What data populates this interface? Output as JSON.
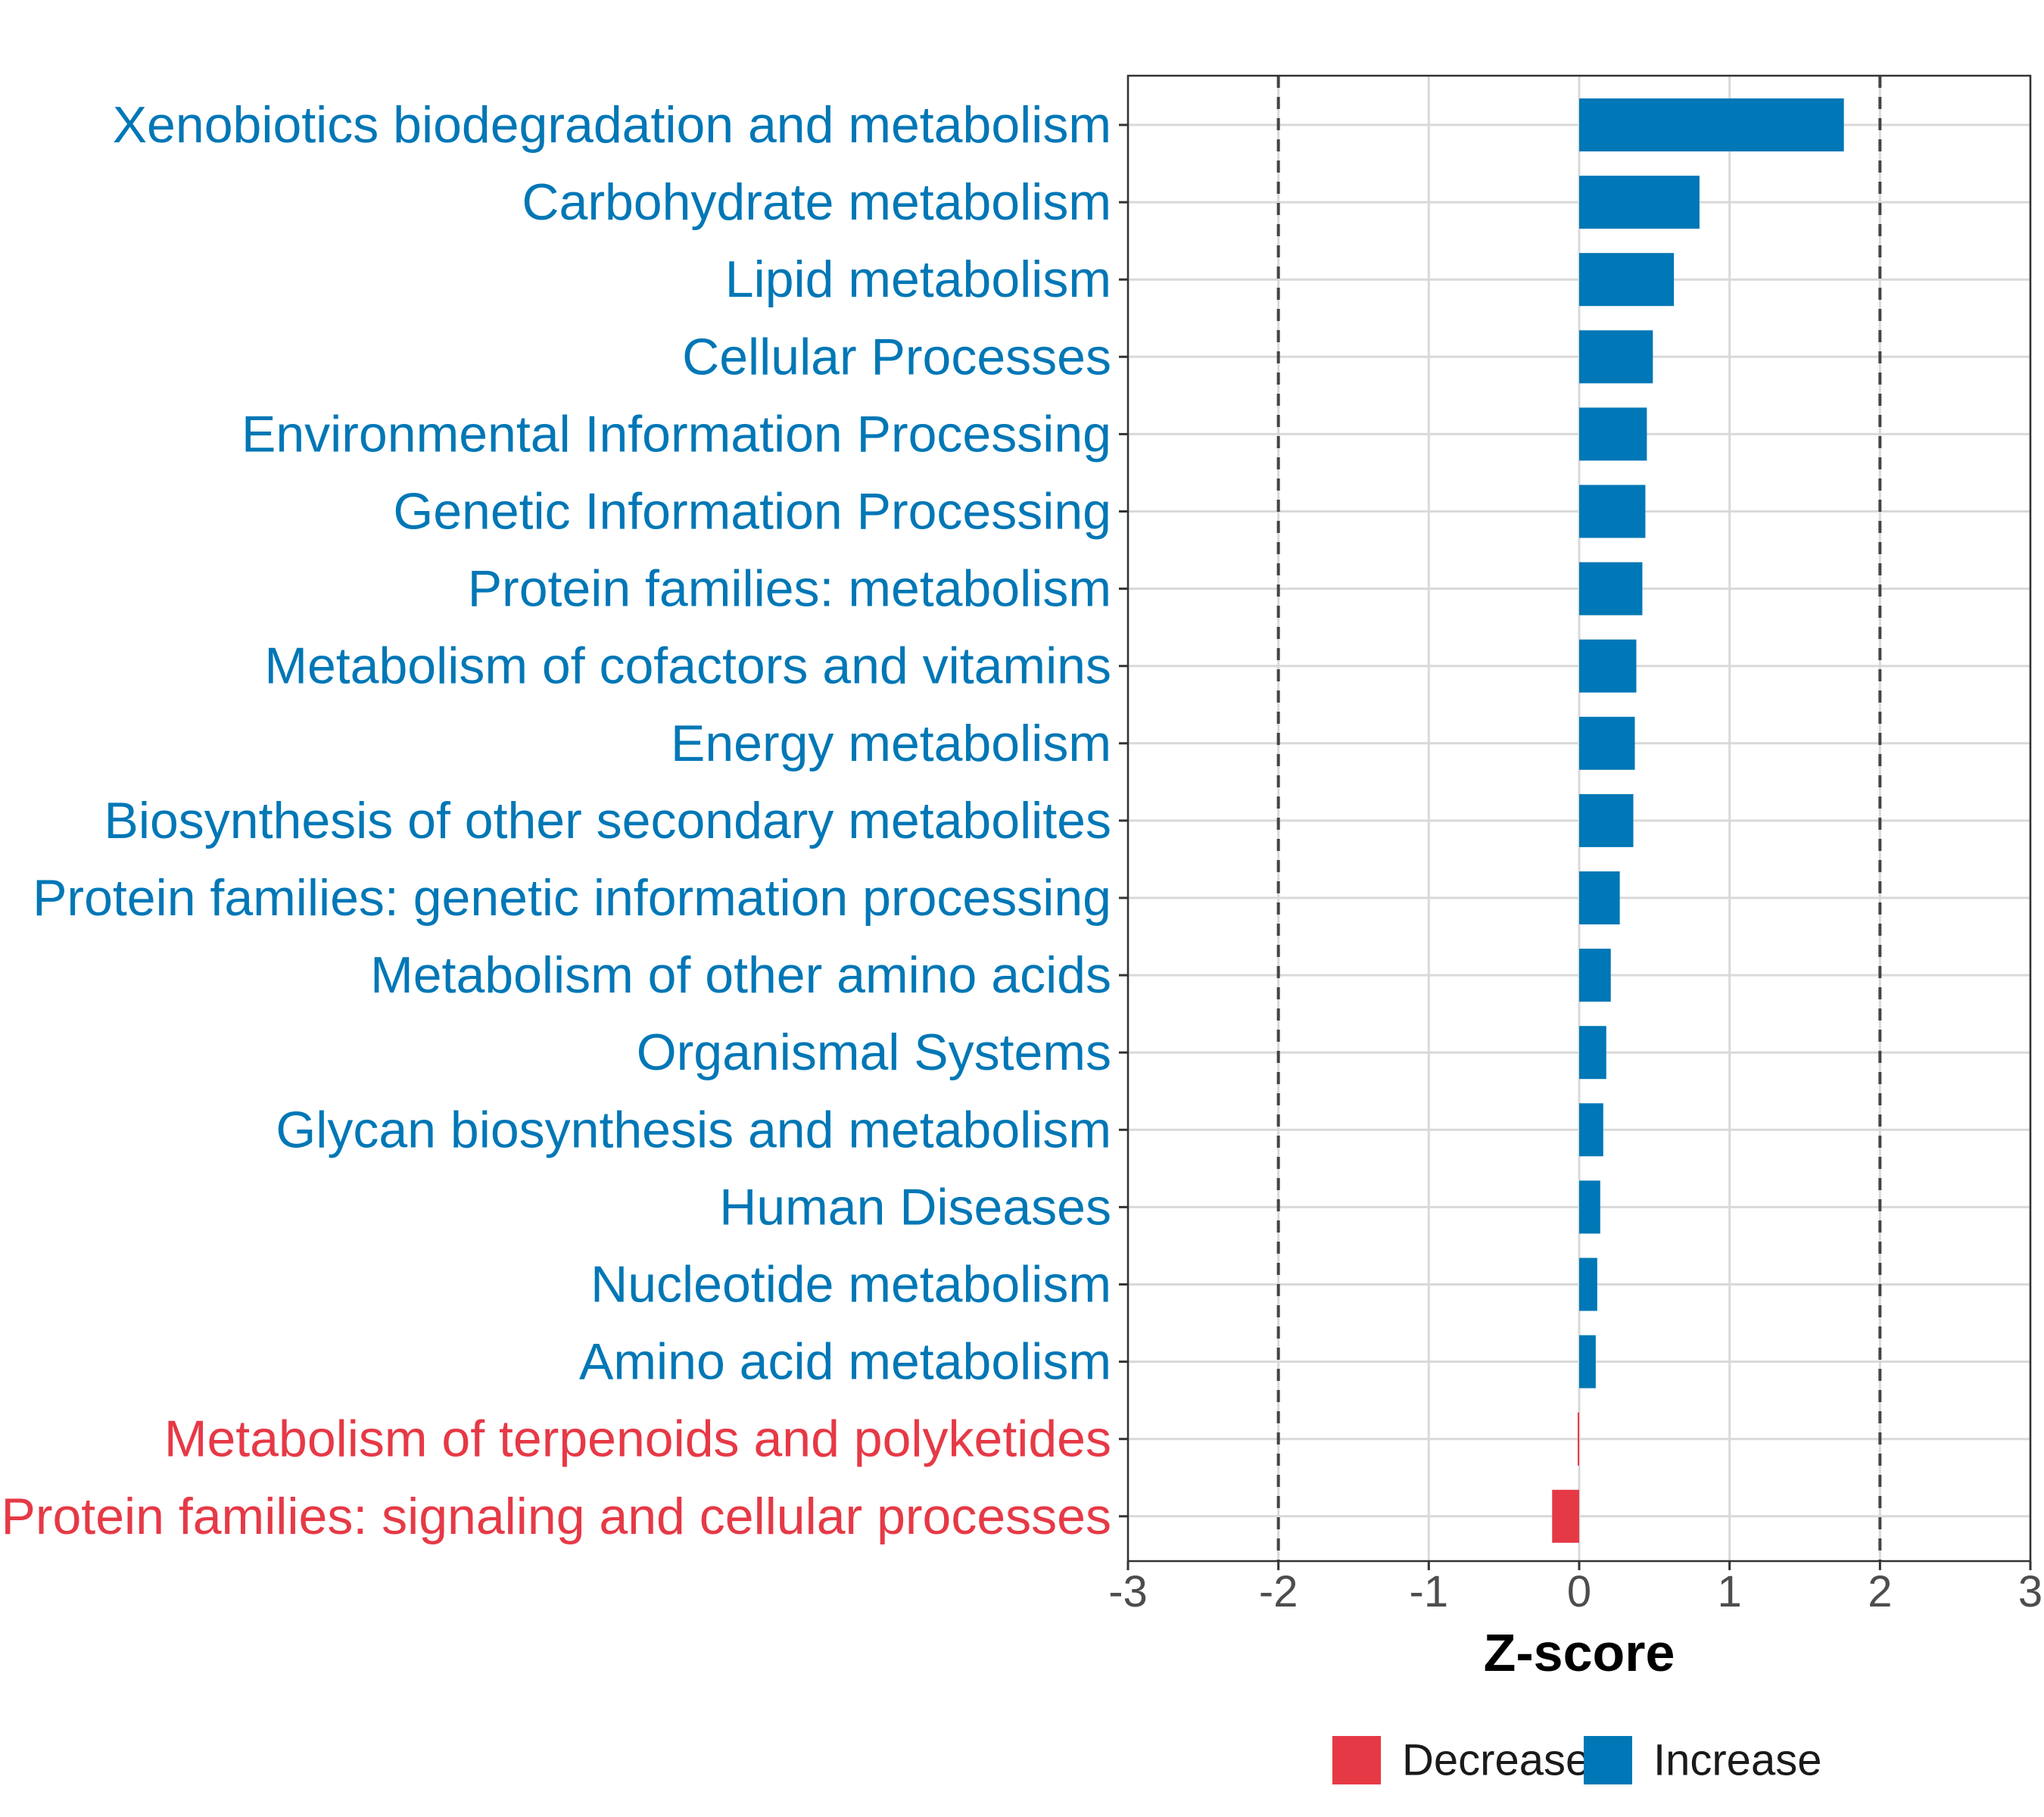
{
  "chart_data": {
    "type": "bar",
    "orientation": "horizontal",
    "title": "",
    "xlabel": "Z-score",
    "ylabel": "",
    "xlim": [
      -3,
      3
    ],
    "xticks": [
      "-3",
      "-2",
      "-1",
      "0",
      "1",
      "2",
      "3"
    ],
    "reference_lines": [
      -2,
      2
    ],
    "grid": true,
    "categories": [
      "Xenobiotics biodegradation and metabolism",
      "Carbohydrate metabolism",
      "Lipid metabolism",
      "Cellular Processes",
      "Environmental Information Processing",
      "Genetic Information Processing",
      "Protein families: metabolism",
      "Metabolism of cofactors and vitamins",
      "Energy metabolism",
      "Biosynthesis of other secondary metabolites",
      "Protein families: genetic information processing",
      "Metabolism of other amino acids",
      "Organismal Systems",
      "Glycan biosynthesis and metabolism",
      "Human Diseases",
      "Nucleotide metabolism",
      "Amino acid metabolism",
      "Metabolism of terpenoids and polyketides",
      "Protein families: signaling and cellular processes"
    ],
    "values": [
      1.76,
      0.8,
      0.63,
      0.49,
      0.45,
      0.44,
      0.42,
      0.38,
      0.37,
      0.36,
      0.27,
      0.21,
      0.18,
      0.16,
      0.14,
      0.12,
      0.11,
      -0.01,
      -0.18
    ],
    "groups": [
      "Increase",
      "Increase",
      "Increase",
      "Increase",
      "Increase",
      "Increase",
      "Increase",
      "Increase",
      "Increase",
      "Increase",
      "Increase",
      "Increase",
      "Increase",
      "Increase",
      "Increase",
      "Increase",
      "Increase",
      "Decrease",
      "Decrease"
    ],
    "legend": {
      "position": "bottom",
      "entries": [
        {
          "label": "Decrease",
          "color": "#e63946"
        },
        {
          "label": "Increase",
          "color": "#0077b6"
        }
      ]
    }
  }
}
